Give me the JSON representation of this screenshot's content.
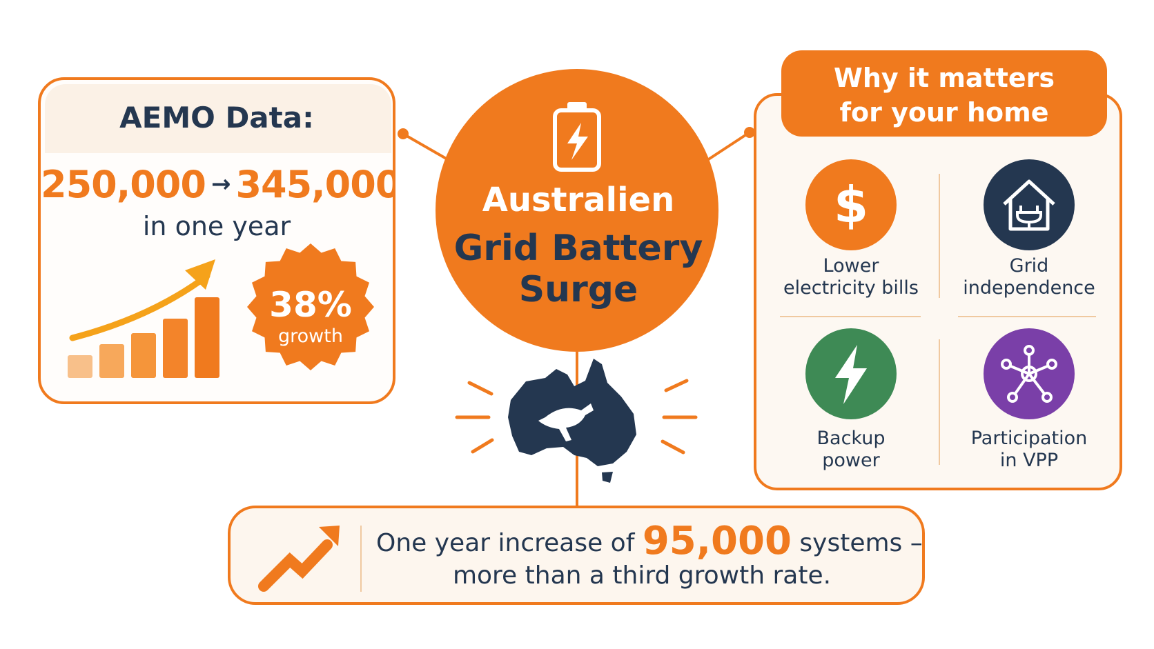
{
  "colors": {
    "orange": "#f07a1e",
    "navy": "#243750",
    "green": "#3e8a55",
    "purple": "#7a3fa8",
    "cream": "#fdf8f2"
  },
  "aemo": {
    "title": "AEMO Data:",
    "from_value": "250,000",
    "arrow": "→",
    "to_value": "345,000",
    "period": "in one year",
    "growth_percent": "38%",
    "growth_label": "growth",
    "growth_bar_levels": [
      0.25,
      0.38,
      0.5,
      0.66,
      0.9
    ]
  },
  "center": {
    "line1": "Australien",
    "line2": "Grid Battery",
    "line3": "Surge",
    "icon": "battery-bolt-icon",
    "map_icon": "australia-kangaroo-map-icon"
  },
  "why": {
    "title_line1": "Why it matters",
    "title_line2": "for your home",
    "benefits": [
      {
        "label_line1": "Lower",
        "label_line2": "electricity bills",
        "icon": "dollar-icon",
        "color": "#f07a1e"
      },
      {
        "label_line1": "Grid",
        "label_line2": "independence",
        "icon": "house-plug-icon",
        "color": "#243750"
      },
      {
        "label_line1": "Backup",
        "label_line2": "power",
        "icon": "lightning-icon",
        "color": "#3e8a55"
      },
      {
        "label_line1": "Participation",
        "label_line2": "in VPP",
        "icon": "network-hub-icon",
        "color": "#7a3fa8"
      }
    ]
  },
  "bottom": {
    "prefix": "One year increase of",
    "highlight": "95,000",
    "suffix": "systems –",
    "line2": "more than a third growth rate.",
    "icon": "trend-up-arrow-icon"
  }
}
